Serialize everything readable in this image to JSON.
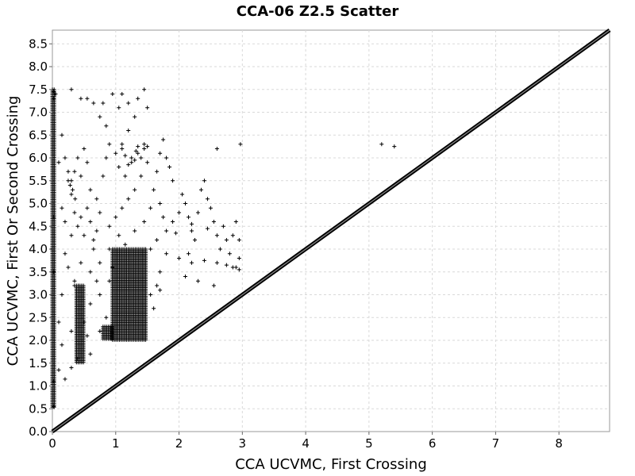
{
  "chart_data": {
    "type": "scatter",
    "title": "CCA-06 Z2.5 Scatter",
    "xlabel": "CCA UCVMC, First Crossing",
    "ylabel": "CCA UCVMC, First Or Second Crossing",
    "xlim": [
      0,
      8.8
    ],
    "ylim": [
      0,
      8.8
    ],
    "x_ticks": [
      "0",
      "1",
      "2",
      "3",
      "4",
      "5",
      "6",
      "7",
      "8"
    ],
    "y_ticks": [
      "0.0",
      "0.5",
      "1.0",
      "1.5",
      "2.0",
      "2.5",
      "3.0",
      "3.5",
      "4.0",
      "4.5",
      "5.0",
      "5.5",
      "6.0",
      "6.5",
      "7.0",
      "7.5",
      "8.0",
      "8.5"
    ],
    "grid": true,
    "marker": "plus",
    "marker_color": "#000000",
    "series": [
      {
        "points": [
          [
            0.02,
            0.55
          ],
          [
            0.02,
            1.1
          ],
          [
            0.02,
            3.5
          ],
          [
            0.02,
            4.7
          ],
          [
            0.02,
            7.3
          ],
          [
            0.02,
            7.45
          ],
          [
            0.05,
            7.4
          ],
          [
            0.15,
            6.5
          ],
          [
            0.1,
            5.9
          ],
          [
            0.2,
            6.0
          ],
          [
            0.25,
            5.5
          ],
          [
            0.3,
            5.2
          ],
          [
            0.15,
            4.9
          ],
          [
            0.2,
            4.6
          ],
          [
            0.35,
            4.8
          ],
          [
            0.4,
            4.5
          ],
          [
            0.3,
            4.3
          ],
          [
            0.45,
            4.7
          ],
          [
            0.35,
            3.3
          ],
          [
            0.45,
            3.7
          ],
          [
            0.2,
            3.9
          ],
          [
            0.25,
            3.6
          ],
          [
            0.4,
            6.0
          ],
          [
            0.5,
            6.2
          ],
          [
            0.55,
            5.9
          ],
          [
            0.45,
            5.6
          ],
          [
            0.6,
            5.3
          ],
          [
            0.55,
            4.9
          ],
          [
            0.6,
            4.6
          ],
          [
            0.5,
            4.3
          ],
          [
            0.65,
            4.0
          ],
          [
            0.7,
            4.4
          ],
          [
            0.75,
            4.8
          ],
          [
            0.7,
            5.1
          ],
          [
            0.8,
            5.6
          ],
          [
            0.85,
            6.0
          ],
          [
            0.9,
            6.3
          ],
          [
            0.85,
            6.7
          ],
          [
            0.75,
            6.9
          ],
          [
            0.65,
            7.2
          ],
          [
            0.55,
            7.3
          ],
          [
            0.3,
            7.5
          ],
          [
            0.45,
            7.3
          ],
          [
            0.8,
            7.2
          ],
          [
            0.95,
            7.4
          ],
          [
            1.05,
            7.1
          ],
          [
            1.1,
            7.4
          ],
          [
            1.2,
            7.2
          ],
          [
            1.35,
            7.3
          ],
          [
            1.45,
            7.5
          ],
          [
            1.5,
            7.1
          ],
          [
            1.3,
            6.9
          ],
          [
            1.2,
            6.6
          ],
          [
            1.1,
            6.3
          ],
          [
            1.0,
            6.1
          ],
          [
            1.05,
            5.8
          ],
          [
            1.15,
            5.6
          ],
          [
            1.25,
            5.9
          ],
          [
            1.35,
            6.1
          ],
          [
            1.45,
            6.2
          ],
          [
            1.5,
            5.9
          ],
          [
            1.4,
            5.6
          ],
          [
            1.3,
            5.3
          ],
          [
            1.2,
            5.1
          ],
          [
            1.1,
            4.9
          ],
          [
            1.0,
            4.7
          ],
          [
            0.9,
            4.5
          ],
          [
            1.05,
            4.3
          ],
          [
            1.15,
            4.1
          ],
          [
            1.3,
            4.4
          ],
          [
            1.45,
            4.6
          ],
          [
            1.55,
            4.9
          ],
          [
            1.6,
            5.3
          ],
          [
            1.65,
            5.7
          ],
          [
            1.7,
            6.1
          ],
          [
            1.75,
            6.4
          ],
          [
            1.8,
            6.0
          ],
          [
            1.85,
            5.8
          ],
          [
            1.9,
            5.5
          ],
          [
            1.7,
            5.0
          ],
          [
            1.75,
            4.7
          ],
          [
            1.8,
            4.4
          ],
          [
            1.65,
            4.2
          ],
          [
            1.55,
            4.0
          ],
          [
            1.9,
            4.6
          ],
          [
            2.0,
            4.8
          ],
          [
            2.05,
            5.2
          ],
          [
            2.1,
            5.0
          ],
          [
            2.15,
            4.7
          ],
          [
            2.2,
            4.4
          ],
          [
            2.25,
            4.2
          ],
          [
            2.3,
            4.8
          ],
          [
            2.35,
            5.3
          ],
          [
            2.4,
            5.5
          ],
          [
            2.45,
            5.1
          ],
          [
            2.5,
            4.9
          ],
          [
            2.55,
            4.6
          ],
          [
            2.6,
            4.3
          ],
          [
            2.65,
            4.0
          ],
          [
            2.7,
            4.5
          ],
          [
            2.75,
            4.2
          ],
          [
            2.8,
            3.9
          ],
          [
            2.85,
            4.3
          ],
          [
            2.9,
            4.6
          ],
          [
            2.95,
            4.2
          ],
          [
            2.95,
            3.8
          ],
          [
            2.9,
            3.6
          ],
          [
            2.95,
            3.55
          ],
          [
            2.85,
            3.6
          ],
          [
            2.75,
            3.65
          ],
          [
            2.6,
            3.7
          ],
          [
            2.4,
            3.75
          ],
          [
            2.2,
            3.7
          ],
          [
            2.0,
            3.8
          ],
          [
            1.8,
            3.9
          ],
          [
            2.1,
            3.4
          ],
          [
            2.3,
            3.3
          ],
          [
            2.55,
            3.2
          ],
          [
            1.7,
            3.5
          ],
          [
            1.65,
            3.2
          ],
          [
            2.6,
            6.2
          ],
          [
            2.97,
            6.3
          ],
          [
            2.2,
            4.55
          ],
          [
            2.45,
            4.45
          ],
          [
            1.95,
            4.35
          ],
          [
            2.15,
            3.9
          ],
          [
            5.2,
            6.3
          ],
          [
            5.4,
            6.25
          ],
          [
            0.75,
            3.0
          ],
          [
            0.7,
            3.3
          ],
          [
            0.6,
            2.8
          ],
          [
            0.5,
            2.4
          ],
          [
            0.3,
            1.4
          ],
          [
            0.4,
            1.6
          ],
          [
            0.6,
            1.7
          ],
          [
            0.55,
            2.1
          ],
          [
            0.2,
            1.15
          ],
          [
            0.75,
            2.2
          ],
          [
            0.85,
            2.5
          ],
          [
            0.9,
            3.3
          ],
          [
            0.95,
            3.6
          ],
          [
            0.75,
            3.7
          ],
          [
            0.6,
            3.5
          ],
          [
            0.35,
            3.2
          ],
          [
            0.15,
            3.0
          ],
          [
            0.3,
            2.2
          ],
          [
            0.15,
            1.9
          ],
          [
            0.1,
            2.4
          ],
          [
            0.1,
            1.35
          ],
          [
            0.65,
            4.2
          ],
          [
            0.9,
            4.0
          ],
          [
            1.55,
            3.0
          ],
          [
            1.6,
            2.7
          ],
          [
            1.7,
            3.1
          ],
          [
            0.35,
            5.7
          ],
          [
            0.3,
            5.5
          ],
          [
            0.32,
            5.3
          ],
          [
            0.36,
            5.1
          ],
          [
            0.25,
            5.7
          ],
          [
            0.28,
            5.4
          ],
          [
            1.25,
            6.0
          ],
          [
            1.3,
            5.95
          ],
          [
            1.32,
            6.15
          ],
          [
            1.4,
            6.0
          ],
          [
            1.15,
            6.05
          ],
          [
            1.2,
            5.85
          ],
          [
            1.45,
            6.3
          ],
          [
            1.5,
            6.25
          ],
          [
            1.35,
            6.25
          ],
          [
            1.1,
            6.2
          ]
        ]
      }
    ],
    "dense_regions": [
      {
        "x_range": [
          0.95,
          1.5
        ],
        "y_range": [
          2.0,
          4.0
        ]
      },
      {
        "x_range": [
          0.8,
          0.95
        ],
        "y_range": [
          2.0,
          2.3
        ]
      },
      {
        "x_range": [
          0.38,
          0.5
        ],
        "y_range": [
          1.5,
          3.2
        ]
      },
      {
        "x_range": [
          0.0,
          0.03
        ],
        "y_range": [
          0.5,
          7.5
        ]
      }
    ],
    "reference_line": {
      "from": [
        0,
        0
      ],
      "to": [
        8.8,
        8.8
      ]
    }
  }
}
